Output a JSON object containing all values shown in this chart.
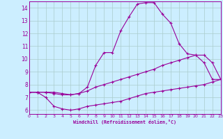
{
  "xlabel": "Windchill (Refroidissement éolien,°C)",
  "background_color": "#cceeff",
  "grid_color": "#aacccc",
  "line_color": "#990099",
  "xmin": 0,
  "xmax": 23,
  "ymin": 5.7,
  "ymax": 14.5,
  "yticks": [
    6,
    7,
    8,
    9,
    10,
    11,
    12,
    13,
    14
  ],
  "xticks": [
    0,
    1,
    2,
    3,
    4,
    5,
    6,
    7,
    8,
    9,
    10,
    11,
    12,
    13,
    14,
    15,
    16,
    17,
    18,
    19,
    20,
    21,
    22,
    23
  ],
  "line1_x": [
    0,
    1,
    2,
    3,
    4,
    5,
    6,
    7,
    8,
    9,
    10,
    11,
    12,
    13,
    14,
    15,
    16,
    17,
    18,
    19,
    20,
    21,
    22,
    23
  ],
  "line1_y": [
    7.4,
    7.4,
    7.0,
    6.3,
    6.1,
    6.0,
    6.1,
    6.3,
    6.4,
    6.5,
    6.6,
    6.7,
    6.9,
    7.1,
    7.3,
    7.4,
    7.5,
    7.6,
    7.7,
    7.8,
    7.9,
    8.0,
    8.2,
    8.4
  ],
  "line2_x": [
    0,
    1,
    2,
    3,
    4,
    5,
    6,
    7,
    8,
    9,
    10,
    11,
    12,
    13,
    14,
    15,
    16,
    17,
    18,
    19,
    20,
    21,
    22,
    23
  ],
  "line2_y": [
    7.4,
    7.4,
    7.4,
    7.3,
    7.2,
    7.2,
    7.3,
    7.5,
    7.8,
    8.0,
    8.2,
    8.4,
    8.6,
    8.8,
    9.0,
    9.2,
    9.5,
    9.7,
    9.9,
    10.1,
    10.3,
    10.3,
    9.7,
    8.4
  ],
  "line3_x": [
    0,
    1,
    2,
    3,
    4,
    5,
    6,
    7,
    8,
    9,
    10,
    11,
    12,
    13,
    14,
    15,
    16,
    17,
    18,
    19,
    20,
    21,
    22,
    23
  ],
  "line3_y": [
    7.4,
    7.4,
    7.4,
    7.4,
    7.3,
    7.2,
    7.3,
    7.8,
    9.5,
    10.5,
    10.5,
    12.2,
    13.3,
    14.3,
    14.4,
    14.4,
    13.5,
    12.8,
    11.2,
    10.4,
    10.3,
    9.7,
    8.4,
    8.4
  ]
}
